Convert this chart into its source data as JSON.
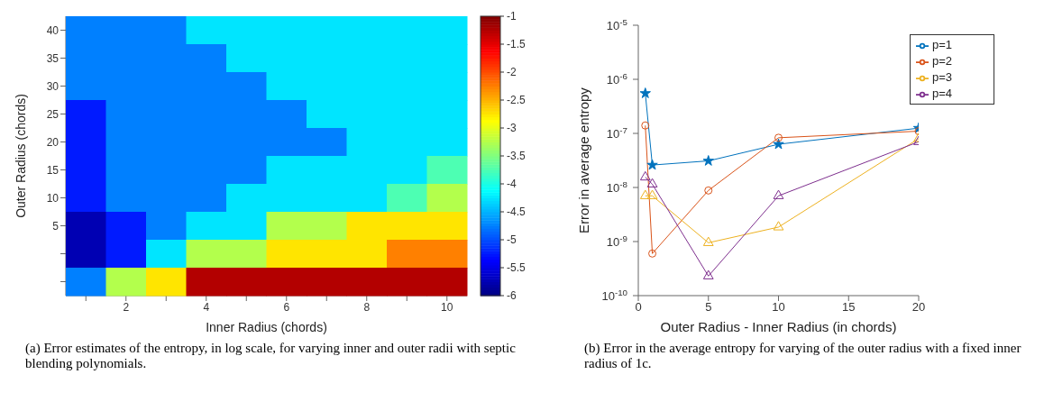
{
  "chart_data": [
    {
      "type": "heatmap",
      "xlabel": "Inner Radius (chords)",
      "ylabel": "Outer Radius (chords)",
      "categories": [
        null,
        "2",
        null,
        "4",
        null,
        "6",
        null,
        "8",
        null,
        "10"
      ],
      "y_categories": [
        "40",
        "35",
        "30",
        "25",
        "20",
        "15",
        "10",
        "5",
        null,
        null
      ],
      "cells": [
        [
          -4.75,
          -4.75,
          -4.75,
          -4.25,
          -4.25,
          -4.25,
          -4.25,
          -4.25,
          -4.25,
          -4.25
        ],
        [
          -4.75,
          -4.75,
          -4.75,
          -4.75,
          -4.25,
          -4.25,
          -4.25,
          -4.25,
          -4.25,
          -4.25
        ],
        [
          -4.75,
          -4.75,
          -4.75,
          -4.75,
          -4.75,
          -4.25,
          -4.25,
          -4.25,
          -4.25,
          -4.25
        ],
        [
          -5.25,
          -4.75,
          -4.75,
          -4.75,
          -4.75,
          -4.75,
          -4.25,
          -4.25,
          -4.25,
          -4.25
        ],
        [
          -5.25,
          -4.75,
          -4.75,
          -4.75,
          -4.75,
          -4.75,
          -4.75,
          -4.25,
          -4.25,
          -4.25
        ],
        [
          -5.25,
          -4.75,
          -4.75,
          -4.75,
          -4.75,
          -4.25,
          -4.25,
          -4.25,
          -4.25,
          -3.75
        ],
        [
          -5.25,
          -4.75,
          -4.75,
          -4.75,
          -4.25,
          -4.25,
          -4.25,
          -4.25,
          -3.75,
          -3.25
        ],
        [
          -5.75,
          -5.25,
          -4.75,
          -4.25,
          -4.25,
          -3.25,
          -3.25,
          -2.75,
          -2.75,
          -2.75
        ],
        [
          -5.75,
          -5.25,
          -4.25,
          -3.25,
          -3.25,
          -2.75,
          -2.75,
          -2.75,
          -2.25,
          -2.25
        ],
        [
          -4.75,
          -3.25,
          -2.75,
          -1.25,
          -1.25,
          -1.25,
          -1.25,
          -1.25,
          -1.25,
          -1.25
        ]
      ],
      "clim": [
        -6,
        -1
      ],
      "cticks": [
        -6,
        -5.5,
        -5,
        -4.5,
        -4,
        -3.5,
        -3,
        -2.5,
        -2,
        -1.5,
        -1
      ],
      "annotations": [
        "(a) Error estimates of the entropy, in log scale, for varying inner and outer radii with septic blending polynomials."
      ]
    },
    {
      "type": "line",
      "xlabel": "Outer Radius - Inner Radius (in chords)",
      "ylabel": "Error in average entropy",
      "x": [
        0.5,
        1,
        5,
        10,
        20
      ],
      "log": "y",
      "xlim": [
        0,
        20
      ],
      "xticks": [
        0,
        5,
        10,
        15,
        20
      ],
      "ylim": [
        1e-10,
        1e-05
      ],
      "yticks": [
        {
          "value": 1e-10,
          "label": "10$^{-10}$"
        },
        {
          "value": 1e-09,
          "label": "10$^{-9}$"
        },
        {
          "value": 1e-08,
          "label": "10$^{-8}$"
        },
        {
          "value": 1e-07,
          "label": "10$^{-7}$"
        },
        {
          "value": 1e-06,
          "label": "10$^{-6}$"
        },
        {
          "value": 1e-05,
          "label": "10$^{-5}$"
        }
      ],
      "legend": "top right",
      "series": [
        {
          "name": "p=1",
          "color": "#0072bd",
          "marker": "star",
          "values": [
            5.5e-07,
            2.6e-08,
            3.1e-08,
            6.3e-08,
            1.25e-07
          ]
        },
        {
          "name": "p=2",
          "color": "#d95319",
          "marker": "circle",
          "values": [
            1.4e-07,
            6e-10,
            8.8e-09,
            8.3e-08,
            1.1e-07
          ]
        },
        {
          "name": "p=3",
          "color": "#edb120",
          "marker": "triangle",
          "values": [
            7e-09,
            7e-09,
            9.5e-10,
            1.85e-09,
            8e-08
          ]
        },
        {
          "name": "p=4",
          "color": "#7e2f8e",
          "marker": "triangle",
          "values": [
            1.55e-08,
            1.15e-08,
            2.3e-10,
            7e-09,
            7e-08
          ]
        }
      ],
      "annotations": [
        "(b) Error in the average entropy for varying of the outer radius with a fixed inner radius of 1c."
      ]
    }
  ]
}
